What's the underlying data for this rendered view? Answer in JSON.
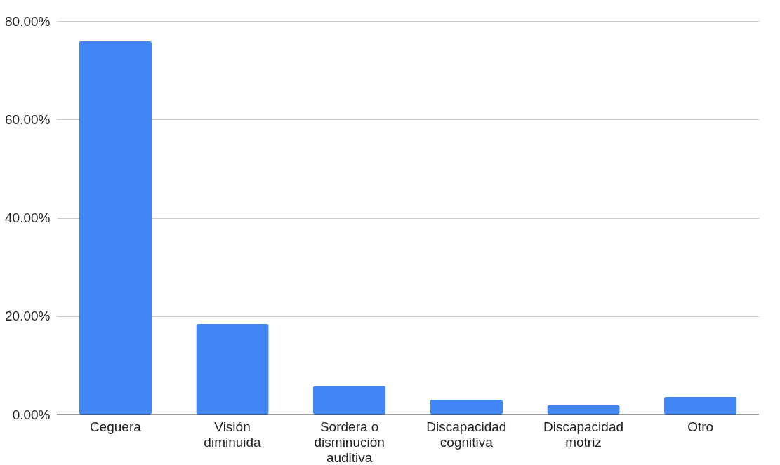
{
  "chart_data": {
    "type": "bar",
    "categories": [
      "Ceguera",
      "Visión diminuida",
      "Sordera o disminución auditiva",
      "Discapacidad cognitiva",
      "Discapacidad motriz",
      "Otro"
    ],
    "values": [
      75.9,
      18.4,
      5.8,
      3.0,
      1.9,
      3.6
    ],
    "color": "#4285f4",
    "ylim": [
      0,
      80
    ],
    "yticks": [
      {
        "value": 0,
        "label": "0.00%"
      },
      {
        "value": 20,
        "label": "20.00%"
      },
      {
        "value": 40,
        "label": "40.00%"
      },
      {
        "value": 60,
        "label": "60.00%"
      },
      {
        "value": 80,
        "label": "80.00%"
      }
    ],
    "grid": "y"
  }
}
